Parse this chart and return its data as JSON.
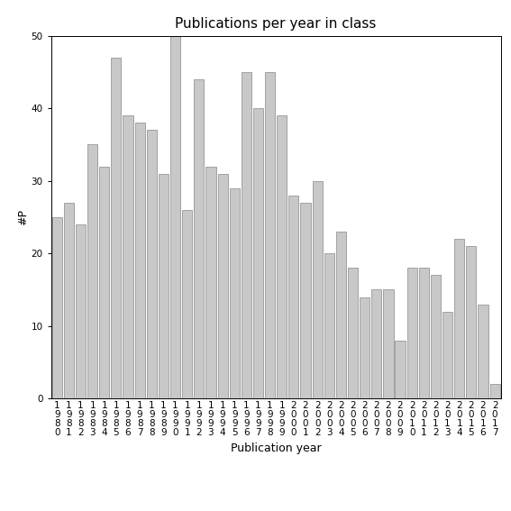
{
  "title": "Publications per year in class",
  "xlabel": "Publication year",
  "ylabel": "#P",
  "years": [
    "1980",
    "1981",
    "1982",
    "1983",
    "1984",
    "1985",
    "1986",
    "1987",
    "1988",
    "1989",
    "1990",
    "1991",
    "1992",
    "1993",
    "1994",
    "1995",
    "1996",
    "1997",
    "1998",
    "1999",
    "2000",
    "2001",
    "2002",
    "2003",
    "2004",
    "2005",
    "2006",
    "2007",
    "2008",
    "2009",
    "2010",
    "2011",
    "2012",
    "2013",
    "2014",
    "2015",
    "2016",
    "2017"
  ],
  "values": [
    25,
    27,
    24,
    35,
    32,
    47,
    39,
    38,
    37,
    31,
    50,
    26,
    44,
    32,
    31,
    29,
    45,
    40,
    45,
    39,
    28,
    27,
    30,
    20,
    23,
    18,
    14,
    15,
    15,
    8,
    18,
    18,
    17,
    12,
    22,
    21,
    13,
    2
  ],
  "bar_color": "#c8c8c8",
  "bar_edgecolor": "#888888",
  "ylim": [
    0,
    50
  ],
  "yticks": [
    0,
    10,
    20,
    30,
    40,
    50
  ],
  "background_color": "#ffffff",
  "title_fontsize": 11,
  "label_fontsize": 9,
  "tick_fontsize": 7.5
}
